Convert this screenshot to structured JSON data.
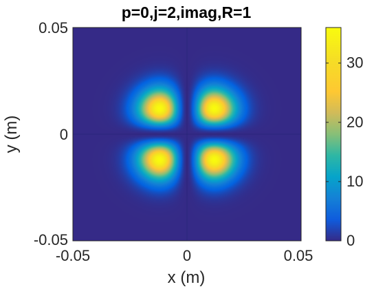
{
  "chart_data": {
    "type": "heatmap",
    "title": "p=0,j=2,imag,R=1",
    "xlabel": "x (m)",
    "ylabel": "y (m)",
    "xlim": [
      -0.05,
      0.05
    ],
    "ylim": [
      -0.05,
      0.05
    ],
    "x_ticks": [
      -0.05,
      0,
      0.05
    ],
    "x_tick_labels": [
      "-0.05",
      "0",
      "0.05"
    ],
    "y_ticks": [
      -0.05,
      0,
      0.05
    ],
    "y_tick_labels": [
      "-0.05",
      "0",
      "0.05"
    ],
    "colorbar": {
      "colormap": "parula",
      "clim": [
        0,
        36
      ],
      "ticks": [
        0,
        10,
        20,
        30
      ],
      "tick_labels": [
        "0",
        "10",
        "20",
        "30"
      ]
    },
    "peaks": [
      {
        "x": -0.012,
        "y": 0.012,
        "value": 36
      },
      {
        "x": 0.012,
        "y": 0.012,
        "value": 36
      },
      {
        "x": -0.012,
        "y": -0.012,
        "value": 36
      },
      {
        "x": 0.012,
        "y": -0.012,
        "value": 36
      }
    ],
    "grid": false
  }
}
